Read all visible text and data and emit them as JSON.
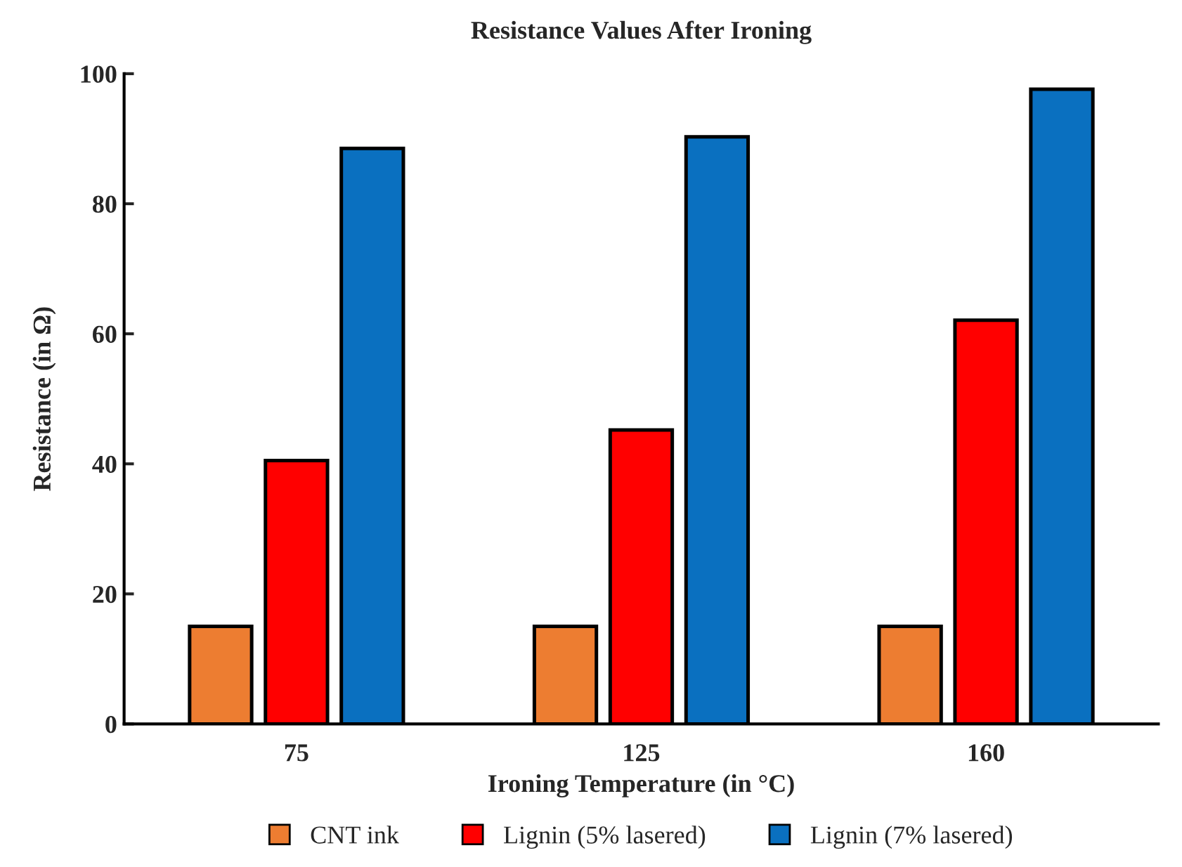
{
  "chart_data": {
    "type": "bar",
    "title": "Resistance Values After Ironing",
    "xlabel": "Ironing Temperature (in °C)",
    "ylabel": "Resistance (in Ω)",
    "categories": [
      "75",
      "125",
      "160"
    ],
    "series": [
      {
        "name": "CNT ink",
        "color": "#ed7d31",
        "values": [
          15,
          15,
          15
        ]
      },
      {
        "name": "Lignin (5% lasered)",
        "color": "#ff0000",
        "values": [
          40.5,
          45.2,
          62.1
        ]
      },
      {
        "name": "Lignin (7% lasered)",
        "color": "#0a70c0",
        "values": [
          88.5,
          90.3,
          97.6
        ]
      }
    ],
    "ylim": [
      0,
      100
    ],
    "yticks": [
      0,
      20,
      40,
      60,
      80,
      100
    ],
    "grid": false,
    "legend": "bottom"
  }
}
